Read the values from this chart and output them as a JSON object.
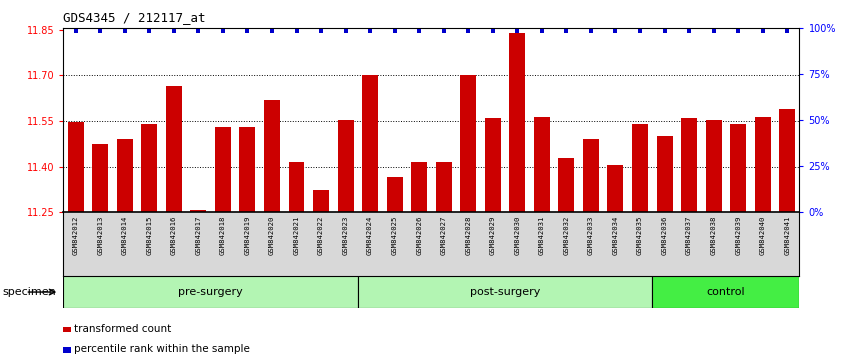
{
  "title": "GDS4345 / 212117_at",
  "samples": [
    "GSM842012",
    "GSM842013",
    "GSM842014",
    "GSM842015",
    "GSM842016",
    "GSM842017",
    "GSM842018",
    "GSM842019",
    "GSM842020",
    "GSM842021",
    "GSM842022",
    "GSM842023",
    "GSM842024",
    "GSM842025",
    "GSM842026",
    "GSM842027",
    "GSM842028",
    "GSM842029",
    "GSM842030",
    "GSM842031",
    "GSM842032",
    "GSM842033",
    "GSM842034",
    "GSM842035",
    "GSM842036",
    "GSM842037",
    "GSM842038",
    "GSM842039",
    "GSM842040",
    "GSM842041"
  ],
  "bar_values": [
    11.548,
    11.475,
    11.49,
    11.54,
    11.665,
    11.258,
    11.53,
    11.53,
    11.62,
    11.415,
    11.325,
    11.555,
    11.7,
    11.365,
    11.415,
    11.415,
    11.7,
    11.56,
    11.84,
    11.565,
    11.43,
    11.49,
    11.405,
    11.54,
    11.5,
    11.56,
    11.555,
    11.54,
    11.565,
    11.59
  ],
  "groups": [
    {
      "label": "pre-surgery",
      "start": 0,
      "end": 12,
      "color": "#b3f0b3"
    },
    {
      "label": "post-surgery",
      "start": 12,
      "end": 24,
      "color": "#b3f0b3"
    },
    {
      "label": "control",
      "start": 24,
      "end": 30,
      "color": "#44dd44"
    }
  ],
  "ylim": [
    11.25,
    11.855
  ],
  "yticks": [
    11.25,
    11.4,
    11.55,
    11.7,
    11.85
  ],
  "right_yticks": [
    0,
    25,
    50,
    75,
    100
  ],
  "bar_color": "#CC0000",
  "percentile_color": "#0000CC",
  "bar_bottom": 11.25,
  "grid_lines": [
    11.4,
    11.55,
    11.7
  ],
  "legend_items": [
    {
      "color": "#CC0000",
      "label": "transformed count"
    },
    {
      "color": "#0000CC",
      "label": "percentile rank within the sample"
    }
  ],
  "specimen_label": "specimen"
}
